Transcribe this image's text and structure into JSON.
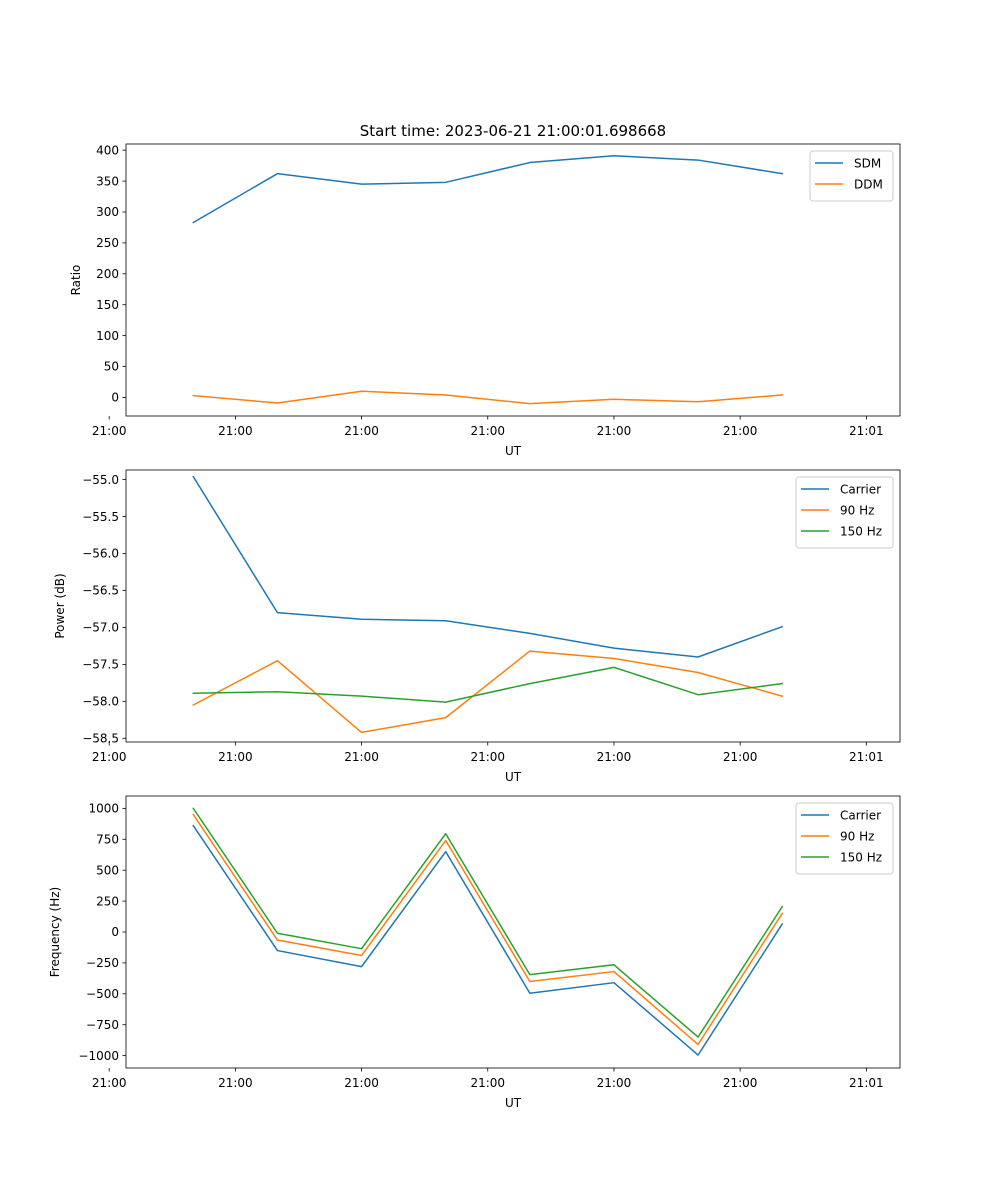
{
  "figure": {
    "title": "Start time: 2023-06-21 21:00:01.698668"
  },
  "chart_data": [
    {
      "type": "line",
      "title": "Start time: 2023-06-21 21:00:01.698668",
      "xlabel": "UT",
      "ylabel": "Ratio",
      "x": [
        1,
        2,
        3,
        4,
        5,
        6,
        7,
        8
      ],
      "xlim": [
        0.2,
        9.4
      ],
      "xticks": [
        0.0,
        1.5,
        3.0,
        4.5,
        6.0,
        7.5,
        9.0
      ],
      "xtick_labels": [
        "21:00",
        "21:00",
        "21:00",
        "21:00",
        "21:00",
        "21:00",
        "21:01"
      ],
      "ylim": [
        -30,
        410
      ],
      "yticks": [
        0,
        50,
        100,
        150,
        200,
        250,
        300,
        350,
        400
      ],
      "ytick_labels": [
        "0",
        "50",
        "100",
        "150",
        "200",
        "250",
        "300",
        "350",
        "400"
      ],
      "legend_position": "top-right",
      "grid": false,
      "series": [
        {
          "name": "SDM",
          "color": "#1f77b4",
          "values": [
            283,
            362,
            345,
            348,
            380,
            391,
            384,
            362
          ]
        },
        {
          "name": "DDM",
          "color": "#ff7f0e",
          "values": [
            3,
            -9,
            10,
            4,
            -10,
            -3,
            -7,
            4
          ]
        }
      ]
    },
    {
      "type": "line",
      "title": "",
      "xlabel": "UT",
      "ylabel": "Power (dB)",
      "x": [
        1,
        2,
        3,
        4,
        5,
        6,
        7,
        8
      ],
      "xlim": [
        0.2,
        9.4
      ],
      "xticks": [
        0.0,
        1.5,
        3.0,
        4.5,
        6.0,
        7.5,
        9.0
      ],
      "xtick_labels": [
        "21:00",
        "21:00",
        "21:00",
        "21:00",
        "21:00",
        "21:00",
        "21:01"
      ],
      "ylim": [
        -58.55,
        -54.87
      ],
      "yticks": [
        -58.5,
        -58.0,
        -57.5,
        -57.0,
        -56.5,
        -56.0,
        -55.5,
        -55.0
      ],
      "ytick_labels": [
        "−58.5",
        "−58.0",
        "−57.5",
        "−57.0",
        "−56.5",
        "−56.0",
        "−55.5",
        "−55.0"
      ],
      "legend_position": "top-right",
      "grid": false,
      "series": [
        {
          "name": "Carrier",
          "color": "#1f77b4",
          "values": [
            -54.96,
            -56.8,
            -56.89,
            -56.91,
            -57.08,
            -57.28,
            -57.4,
            -56.99
          ]
        },
        {
          "name": "90 Hz",
          "color": "#ff7f0e",
          "values": [
            -58.05,
            -57.45,
            -58.42,
            -58.22,
            -57.32,
            -57.42,
            -57.61,
            -57.93
          ]
        },
        {
          "name": "150 Hz",
          "color": "#2ca02c",
          "values": [
            -57.89,
            -57.87,
            -57.93,
            -58.01,
            -57.76,
            -57.54,
            -57.91,
            -57.76
          ]
        }
      ]
    },
    {
      "type": "line",
      "title": "",
      "xlabel": "UT",
      "ylabel": "Frequency (Hz)",
      "x": [
        1,
        2,
        3,
        4,
        5,
        6,
        7,
        8
      ],
      "xlim": [
        0.2,
        9.4
      ],
      "xticks": [
        0.0,
        1.5,
        3.0,
        4.5,
        6.0,
        7.5,
        9.0
      ],
      "xtick_labels": [
        "21:00",
        "21:00",
        "21:00",
        "21:00",
        "21:00",
        "21:00",
        "21:01"
      ],
      "ylim": [
        -1100,
        1100
      ],
      "yticks": [
        -1000,
        -750,
        -500,
        -250,
        0,
        250,
        500,
        750,
        1000
      ],
      "ytick_labels": [
        "−1000",
        "−750",
        "−500",
        "−250",
        "0",
        "250",
        "500",
        "750",
        "1000"
      ],
      "legend_position": "top-right",
      "grid": false,
      "series": [
        {
          "name": "Carrier",
          "color": "#1f77b4",
          "values": [
            860,
            -150,
            -280,
            650,
            -495,
            -410,
            -995,
            65
          ]
        },
        {
          "name": "90 Hz",
          "color": "#ff7f0e",
          "values": [
            950,
            -65,
            -190,
            740,
            -400,
            -320,
            -910,
            150
          ]
        },
        {
          "name": "150 Hz",
          "color": "#2ca02c",
          "values": [
            1000,
            -10,
            -135,
            795,
            -345,
            -265,
            -850,
            205
          ]
        }
      ]
    }
  ]
}
